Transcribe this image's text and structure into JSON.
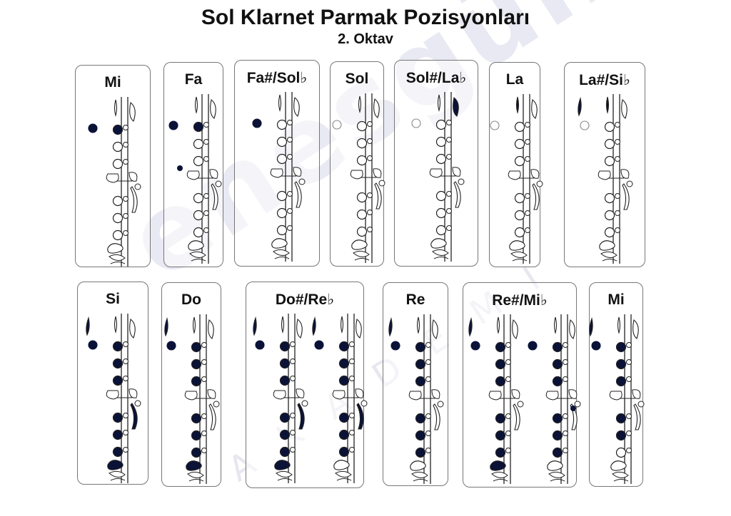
{
  "title": "Sol Klarnet Parmak Pozisyonları",
  "subtitle": "2. Oktav",
  "watermark": {
    "main": "enesgünün",
    "sub": "AKADEMİ"
  },
  "colors": {
    "filled": "#0b1238",
    "outline": "#222222",
    "watermark": "#e6e7ef"
  },
  "rows": [
    [
      {
        "label": "Mi",
        "diagrams": [
          {
            "thumb": "filled",
            "register": "none",
            "top": [
              1,
              0,
              0
            ],
            "bottom": [
              0,
              0,
              0
            ],
            "extra": []
          }
        ]
      },
      {
        "label": "Fa",
        "diagrams": [
          {
            "thumb": "filled",
            "register": "none",
            "top": [
              1,
              0,
              0
            ],
            "bottom": [
              0,
              0,
              0
            ],
            "extra": [
              "left-side-dot"
            ]
          }
        ]
      },
      {
        "label": "Fa#/Sol♭",
        "diagrams": [
          {
            "thumb": "filled",
            "register": "none",
            "top": [
              0,
              0,
              0
            ],
            "bottom": [
              0,
              0,
              0
            ],
            "extra": []
          }
        ]
      },
      {
        "label": "Sol",
        "diagrams": [
          {
            "thumb": "open",
            "register": "none",
            "top": [
              0,
              0,
              0
            ],
            "bottom": [
              0,
              0,
              0
            ],
            "extra": []
          }
        ]
      },
      {
        "label": "Sol#/La♭",
        "diagrams": [
          {
            "thumb": "open",
            "register": "none",
            "top": [
              0,
              0,
              0
            ],
            "bottom": [
              0,
              0,
              0
            ],
            "extra": [
              "gsharp-key"
            ]
          }
        ]
      },
      {
        "label": "La",
        "diagrams": [
          {
            "thumb": "open",
            "register": "none",
            "top": [
              0,
              0,
              0
            ],
            "bottom": [
              0,
              0,
              0
            ],
            "extra": [
              "a-key"
            ]
          }
        ]
      },
      {
        "label": "La#/Si♭",
        "diagrams": [
          {
            "thumb": "open",
            "register": "filled",
            "top": [
              0,
              0,
              0
            ],
            "bottom": [
              0,
              0,
              0
            ],
            "extra": [
              "a-key"
            ]
          }
        ]
      }
    ],
    [
      {
        "label": "Si",
        "diagrams": [
          {
            "thumb": "filled",
            "register": "filled",
            "top": [
              1,
              1,
              1
            ],
            "bottom": [
              1,
              1,
              1
            ],
            "extra": [
              "right-side-key",
              "pinky-left"
            ]
          }
        ]
      },
      {
        "label": "Do",
        "diagrams": [
          {
            "thumb": "filled",
            "register": "filled",
            "top": [
              1,
              1,
              1
            ],
            "bottom": [
              1,
              1,
              1
            ],
            "extra": [
              "pinky-left"
            ]
          }
        ]
      },
      {
        "label": "Do#/Re♭",
        "diagrams": [
          {
            "thumb": "filled",
            "register": "filled",
            "top": [
              1,
              1,
              1
            ],
            "bottom": [
              1,
              1,
              1
            ],
            "extra": [
              "right-side-key",
              "pinky-left"
            ]
          },
          {
            "thumb": "filled",
            "register": "filled",
            "top": [
              1,
              1,
              1
            ],
            "bottom": [
              1,
              1,
              1
            ],
            "extra": [
              "right-side-key"
            ]
          }
        ]
      },
      {
        "label": "Re",
        "diagrams": [
          {
            "thumb": "filled",
            "register": "filled",
            "top": [
              1,
              1,
              1
            ],
            "bottom": [
              1,
              1,
              1
            ],
            "extra": []
          }
        ]
      },
      {
        "label": "Re#/Mi♭",
        "diagrams": [
          {
            "thumb": "filled",
            "register": "filled",
            "top": [
              1,
              1,
              1
            ],
            "bottom": [
              1,
              1,
              1
            ],
            "extra": [
              "pinky-left"
            ]
          },
          {
            "thumb": "filled",
            "register": "none",
            "top": [
              1,
              1,
              1
            ],
            "bottom": [
              1,
              1,
              1
            ],
            "extra": [
              "trill-dot"
            ]
          }
        ]
      },
      {
        "label": "Mi",
        "diagrams": [
          {
            "thumb": "filled",
            "register": "filled",
            "top": [
              1,
              1,
              1
            ],
            "bottom": [
              1,
              1,
              0
            ],
            "extra": []
          }
        ]
      }
    ]
  ]
}
